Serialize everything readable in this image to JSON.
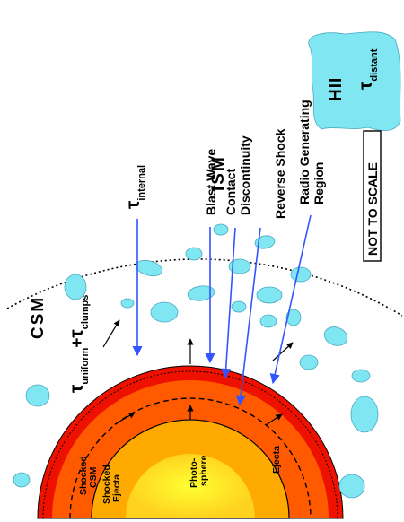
{
  "labels": {
    "photosphere": [
      "Photo-",
      "sphere"
    ],
    "ejecta": "Ejecta",
    "shocked_ejecta": [
      "Shocked",
      "Ejecta"
    ],
    "shocked_csm": [
      "Shocked",
      "CSM"
    ],
    "csm": "CSM",
    "ism": "ISM",
    "hii": "HII",
    "tau_uniform": {
      "symbol": "τ",
      "sub1": "uniform",
      "plus": "+",
      "sub2": "clumps"
    },
    "tau_internal": {
      "symbol": "τ",
      "sub": "internal"
    },
    "tau_distant": {
      "symbol": "τ",
      "sub": "distant"
    },
    "blast_wave": "Blast Wave",
    "contact_discontinuity": [
      "Contact",
      "Discontinuity"
    ],
    "reverse_shock": "Reverse Shock",
    "radio_region": [
      "Radio Generating",
      "Region"
    ],
    "not_to_scale": "NOT TO SCALE"
  },
  "colors": {
    "photosphere_core": "#ffff1a",
    "photosphere_edge": "#ffd21e",
    "ejecta": "#ffaa00",
    "shocked_ejecta": "#ff5a00",
    "shocked_csm": "#ee1100",
    "clump": "#80e6f2",
    "clump_edge": "#4aa9c0",
    "leader_arrow": "#3355ff"
  }
}
